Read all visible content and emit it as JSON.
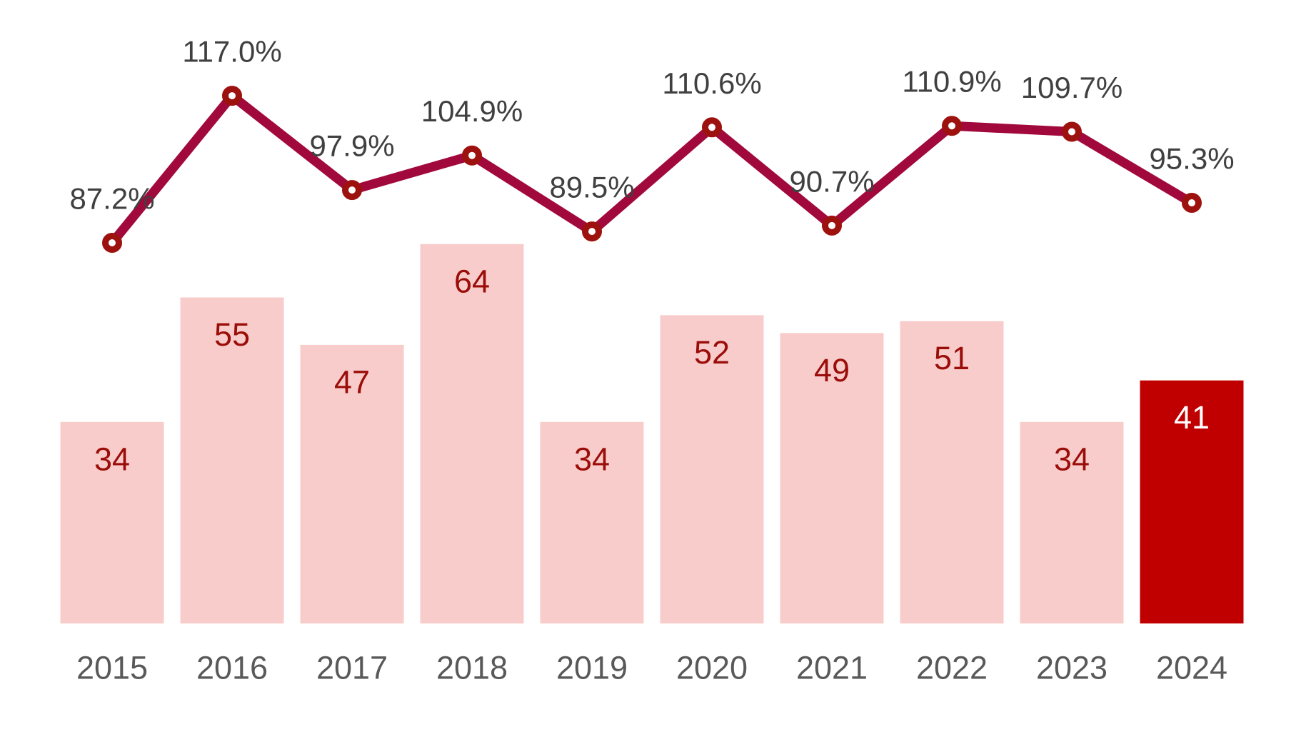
{
  "chart_data": {
    "type": "combo",
    "title": "",
    "categories": [
      "2015",
      "2016",
      "2017",
      "2018",
      "2019",
      "2020",
      "2021",
      "2022",
      "2023",
      "2024"
    ],
    "series": [
      {
        "name": "annual-count-bars",
        "type": "bar",
        "values": [
          34,
          55,
          47,
          64,
          34,
          52,
          49,
          51,
          34,
          41
        ],
        "data_labels": [
          "34",
          "55",
          "47",
          "64",
          "34",
          "52",
          "49",
          "51",
          "34",
          "41"
        ]
      },
      {
        "name": "percentage-line",
        "type": "line",
        "values": [
          87.2,
          117.0,
          97.9,
          104.9,
          89.5,
          110.6,
          90.7,
          110.9,
          109.7,
          95.3
        ],
        "data_labels": [
          "87.2%",
          "117.0%",
          "97.9%",
          "104.9%",
          "89.5%",
          "110.6%",
          "90.7%",
          "110.9%",
          "109.7%",
          "95.3%"
        ]
      }
    ],
    "highlight": {
      "index": 9,
      "category": "2024"
    },
    "legend": "none",
    "gridlines": false,
    "value_axes_visible": false,
    "xlabel": "",
    "ylabel": "",
    "colors": {
      "bar_fill": "#F8CCCB",
      "bar_highlight_fill": "#C00000",
      "bar_label": "#9A0D08",
      "bar_label_on_highlight": "#FFFFFF",
      "line": "#A1093C",
      "marker_stroke": "#9D120F",
      "marker_fill": "#FFFFFF",
      "percent_label": "#404040",
      "axis_label": "#595959",
      "background": "#FFFFFF"
    }
  }
}
